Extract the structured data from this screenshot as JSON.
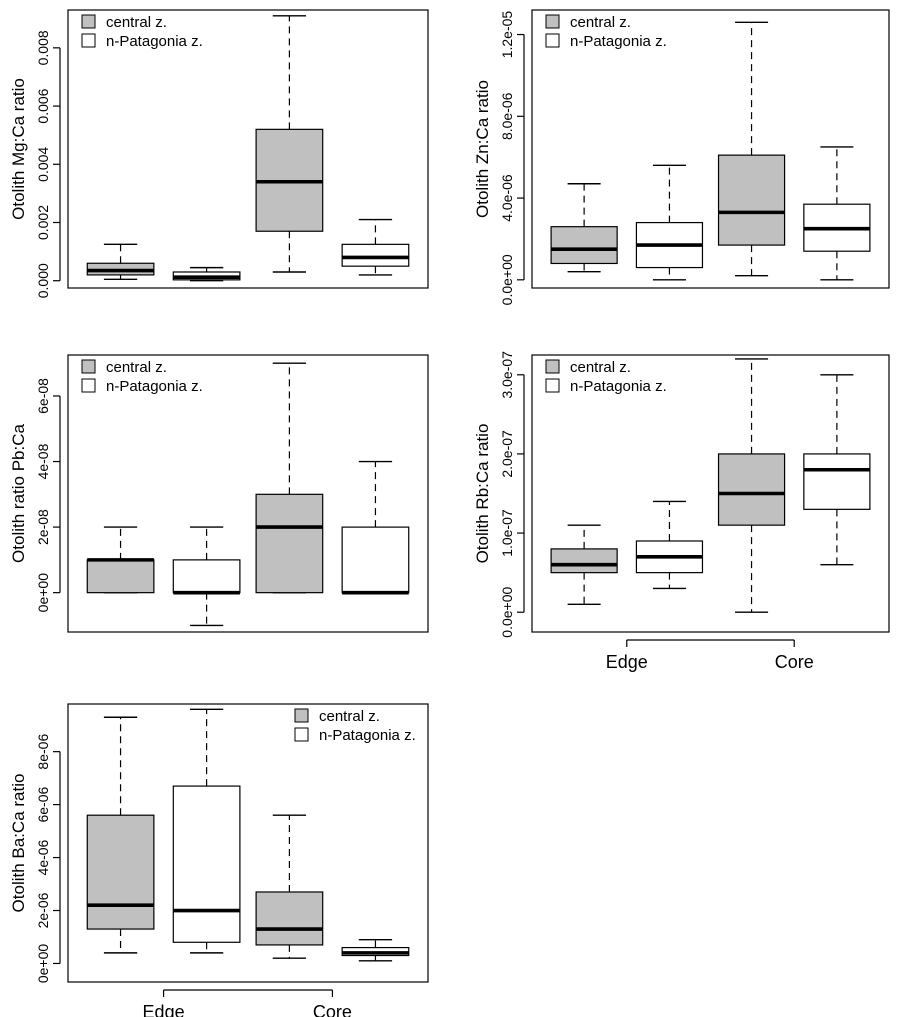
{
  "legend": {
    "central": "central z.",
    "patagonia": "n-Patagonia z."
  },
  "colors": {
    "central_fill": "#c0c0c0",
    "patagonia_fill": "#ffffff",
    "line": "#000000"
  },
  "chart_data": [
    {
      "type": "boxplot",
      "ylabel": "Otolith Mg:Ca ratio",
      "ylim": [
        -0.00025,
        0.0093
      ],
      "yticks": [
        0,
        0.002,
        0.004,
        0.006,
        0.008
      ],
      "ytick_labels": [
        "0.000",
        "0.002",
        "0.004",
        "0.006",
        "0.008"
      ],
      "categories": [],
      "legend_position": "top-left",
      "boxes": [
        {
          "series": "central z.",
          "group": "Edge",
          "min": 5e-05,
          "q1": 0.0002,
          "median": 0.00035,
          "q3": 0.0006,
          "max": 0.00125
        },
        {
          "series": "n-Patagonia z.",
          "group": "Edge",
          "min": 0.0,
          "q1": 3e-05,
          "median": 0.00012,
          "q3": 0.0003,
          "max": 0.00045
        },
        {
          "series": "central z.",
          "group": "Core",
          "min": 0.0003,
          "q1": 0.0017,
          "median": 0.0034,
          "q3": 0.0052,
          "max": 0.0091
        },
        {
          "series": "n-Patagonia z.",
          "group": "Core",
          "min": 0.0002,
          "q1": 0.0005,
          "median": 0.0008,
          "q3": 0.00125,
          "max": 0.0021
        }
      ]
    },
    {
      "type": "boxplot",
      "ylabel": "Otolith Zn:Ca ratio",
      "ylim": [
        -4e-07,
        1.32e-05
      ],
      "yticks": [
        0,
        4e-06,
        8e-06,
        1.2e-05
      ],
      "ytick_labels": [
        "0.0e+00",
        "4.0e-06",
        "8.0e-06",
        "1.2e-05"
      ],
      "categories": [],
      "legend_position": "top-left",
      "boxes": [
        {
          "series": "central z.",
          "group": "Edge",
          "min": 4e-07,
          "q1": 8e-07,
          "median": 1.5e-06,
          "q3": 2.6e-06,
          "max": 4.7e-06
        },
        {
          "series": "n-Patagonia z.",
          "group": "Edge",
          "min": 0.0,
          "q1": 6e-07,
          "median": 1.7e-06,
          "q3": 2.8e-06,
          "max": 5.6e-06
        },
        {
          "series": "central z.",
          "group": "Core",
          "min": 2e-07,
          "q1": 1.7e-06,
          "median": 3.3e-06,
          "q3": 6.1e-06,
          "max": 1.26e-05
        },
        {
          "series": "n-Patagonia z.",
          "group": "Core",
          "min": 0.0,
          "q1": 1.4e-06,
          "median": 2.5e-06,
          "q3": 3.7e-06,
          "max": 6.5e-06
        }
      ]
    },
    {
      "type": "boxplot",
      "ylabel": "Otolith ratio Pb:Ca",
      "ylim": [
        -1.2e-08,
        7.25e-08
      ],
      "yticks": [
        0,
        2e-08,
        4e-08,
        6e-08
      ],
      "ytick_labels": [
        "0e+00",
        "2e-08",
        "4e-08",
        "6e-08"
      ],
      "categories": [],
      "legend_position": "top-left",
      "boxes": [
        {
          "series": "central z.",
          "group": "Edge",
          "min": 0.0,
          "q1": 0.0,
          "median": 1e-08,
          "q3": 1e-08,
          "max": 2e-08
        },
        {
          "series": "n-Patagonia z.",
          "group": "Edge",
          "min": -1e-08,
          "q1": 0.0,
          "median": 0.0,
          "q3": 1e-08,
          "max": 2e-08
        },
        {
          "series": "central z.",
          "group": "Core",
          "min": 0.0,
          "q1": 0.0,
          "median": 2e-08,
          "q3": 3e-08,
          "max": 7e-08
        },
        {
          "series": "n-Patagonia z.",
          "group": "Core",
          "min": 0.0,
          "q1": 0.0,
          "median": 0.0,
          "q3": 2e-08,
          "max": 4e-08
        }
      ]
    },
    {
      "type": "boxplot",
      "ylabel": "Otolith Rb:Ca ratio",
      "ylim": [
        -2.5e-08,
        3.25e-07
      ],
      "yticks": [
        0,
        1e-07,
        2e-07,
        3e-07
      ],
      "ytick_labels": [
        "0.0e+00",
        "1.0e-07",
        "2.0e-07",
        "3.0e-07"
      ],
      "categories": [
        "Edge",
        "Core"
      ],
      "legend_position": "top-left",
      "boxes": [
        {
          "series": "central z.",
          "group": "Edge",
          "min": 1e-08,
          "q1": 5e-08,
          "median": 6e-08,
          "q3": 8e-08,
          "max": 1.1e-07
        },
        {
          "series": "n-Patagonia z.",
          "group": "Edge",
          "min": 3e-08,
          "q1": 5e-08,
          "median": 7e-08,
          "q3": 9e-08,
          "max": 1.4e-07
        },
        {
          "series": "central z.",
          "group": "Core",
          "min": 0.0,
          "q1": 1.1e-07,
          "median": 1.5e-07,
          "q3": 2e-07,
          "max": 3.2e-07
        },
        {
          "series": "n-Patagonia z.",
          "group": "Core",
          "min": 6e-08,
          "q1": 1.3e-07,
          "median": 1.8e-07,
          "q3": 2e-07,
          "max": 3e-07
        }
      ]
    },
    {
      "type": "boxplot",
      "ylabel": "Otolith Ba:Ca ratio",
      "ylim": [
        -7e-07,
        9.8e-06
      ],
      "yticks": [
        0,
        2e-06,
        4e-06,
        6e-06,
        8e-06
      ],
      "ytick_labels": [
        "0e+00",
        "2e-06",
        "4e-06",
        "6e-06",
        "8e-06"
      ],
      "categories": [
        "Edge",
        "Core"
      ],
      "legend_position": "top-right",
      "boxes": [
        {
          "series": "central z.",
          "group": "Edge",
          "min": 4e-07,
          "q1": 1.3e-06,
          "median": 2.2e-06,
          "q3": 5.6e-06,
          "max": 9.3e-06
        },
        {
          "series": "n-Patagonia z.",
          "group": "Edge",
          "min": 4e-07,
          "q1": 8e-07,
          "median": 2e-06,
          "q3": 6.7e-06,
          "max": 9.6e-06
        },
        {
          "series": "central z.",
          "group": "Core",
          "min": 2e-07,
          "q1": 7e-07,
          "median": 1.3e-06,
          "q3": 2.7e-06,
          "max": 5.6e-06
        },
        {
          "series": "n-Patagonia z.",
          "group": "Core",
          "min": 1e-07,
          "q1": 3e-07,
          "median": 4e-07,
          "q3": 6e-07,
          "max": 9e-07
        }
      ]
    }
  ]
}
